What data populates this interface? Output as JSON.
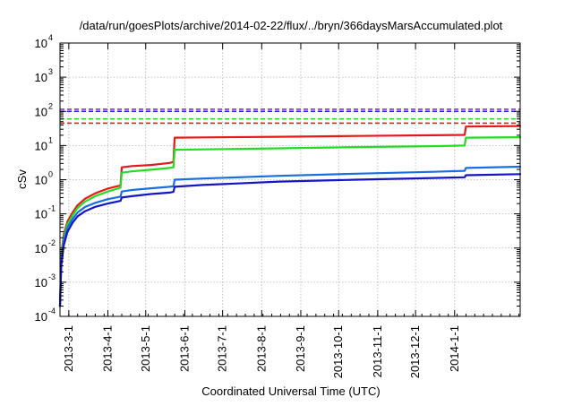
{
  "chart_data": {
    "type": "line",
    "title": "/data/run/goesPlots/archive/2014-02-22/flux/../bryn/366daysMarsAccumulated.plot",
    "xlabel": "Coordinated Universal Time (UTC)",
    "ylabel": "cSv",
    "y_scale": "log",
    "ylim_exponents": [
      -4,
      4
    ],
    "xlim": [
      "2013-02-22",
      "2014-02-22"
    ],
    "grid": true,
    "x_tick_labels": [
      "2013-3-1",
      "2013-4-1",
      "2013-5-1",
      "2013-6-1",
      "2013-7-1",
      "2013-8-1",
      "2013-9-1",
      "2013-10-1",
      "2013-11-1",
      "2013-12-1",
      "2014-1-1"
    ],
    "y_tick_base": "10",
    "y_tick_exponents": [
      "-4",
      "-3",
      "-2",
      "-1",
      "0",
      "1",
      "2",
      "3",
      "4"
    ],
    "reference_lines": [
      {
        "value": 115,
        "color": "#8b2be2"
      },
      {
        "value": 100,
        "color": "#2a1fd6"
      },
      {
        "value": 60,
        "color": "#22dd22"
      },
      {
        "value": 45,
        "color": "#e81818"
      }
    ],
    "series": [
      {
        "color": "#e81818",
        "x": [
          "2013-02-22",
          "2013-02-23",
          "2013-02-25",
          "2013-02-28",
          "2013-03-04",
          "2013-03-08",
          "2013-03-14",
          "2013-03-22",
          "2013-04-01",
          "2013-04-11",
          "2013-04-12",
          "2013-04-20",
          "2013-05-05",
          "2013-05-20",
          "2013-05-23",
          "2013-05-24",
          "2013-06-15",
          "2013-08-15",
          "2013-10-15",
          "2013-12-15",
          "2014-01-09",
          "2014-01-10",
          "2014-02-22"
        ],
        "y": [
          0.0002,
          0.006,
          0.025,
          0.06,
          0.11,
          0.18,
          0.28,
          0.4,
          0.55,
          0.68,
          2.3,
          2.5,
          2.7,
          3.1,
          3.3,
          17,
          17.3,
          18,
          19,
          20,
          20.5,
          36,
          37
        ]
      },
      {
        "color": "#22dd22",
        "x": [
          "2013-02-22",
          "2013-02-23",
          "2013-02-25",
          "2013-02-28",
          "2013-03-04",
          "2013-03-08",
          "2013-03-14",
          "2013-03-22",
          "2013-04-01",
          "2013-04-11",
          "2013-04-12",
          "2013-04-20",
          "2013-05-05",
          "2013-05-20",
          "2013-05-23",
          "2013-05-24",
          "2013-06-15",
          "2013-08-15",
          "2013-10-15",
          "2013-12-15",
          "2014-01-09",
          "2014-01-10",
          "2014-02-22"
        ],
        "y": [
          0.0002,
          0.005,
          0.02,
          0.05,
          0.09,
          0.15,
          0.23,
          0.33,
          0.45,
          0.58,
          1.6,
          1.75,
          1.95,
          2.2,
          2.3,
          7.5,
          7.7,
          8.3,
          9,
          9.6,
          10,
          17,
          17.5
        ]
      },
      {
        "color": "#1a6fe0",
        "x": [
          "2013-02-22",
          "2013-02-23",
          "2013-02-25",
          "2013-02-28",
          "2013-03-04",
          "2013-03-08",
          "2013-03-14",
          "2013-03-22",
          "2013-04-01",
          "2013-04-11",
          "2013-04-12",
          "2013-04-20",
          "2013-05-05",
          "2013-05-20",
          "2013-05-23",
          "2013-05-24",
          "2013-06-15",
          "2013-08-15",
          "2013-10-15",
          "2013-12-15",
          "2014-01-09",
          "2014-01-10",
          "2014-02-22"
        ],
        "y": [
          0.0002,
          0.004,
          0.016,
          0.04,
          0.07,
          0.11,
          0.16,
          0.21,
          0.27,
          0.32,
          0.45,
          0.5,
          0.56,
          0.62,
          0.64,
          1.0,
          1.08,
          1.3,
          1.5,
          1.7,
          1.82,
          2.2,
          2.4
        ]
      },
      {
        "color": "#1515c8",
        "x": [
          "2013-02-22",
          "2013-02-23",
          "2013-02-25",
          "2013-02-28",
          "2013-03-04",
          "2013-03-08",
          "2013-03-14",
          "2013-03-22",
          "2013-04-01",
          "2013-04-11",
          "2013-04-12",
          "2013-04-20",
          "2013-05-05",
          "2013-05-20",
          "2013-05-23",
          "2013-05-24",
          "2013-06-15",
          "2013-08-15",
          "2013-10-15",
          "2013-12-15",
          "2014-01-09",
          "2014-01-10",
          "2014-02-22"
        ],
        "y": [
          0.0002,
          0.003,
          0.012,
          0.03,
          0.055,
          0.085,
          0.12,
          0.16,
          0.2,
          0.24,
          0.3,
          0.33,
          0.38,
          0.42,
          0.44,
          0.62,
          0.7,
          0.88,
          1.0,
          1.12,
          1.18,
          1.35,
          1.45
        ]
      }
    ]
  }
}
